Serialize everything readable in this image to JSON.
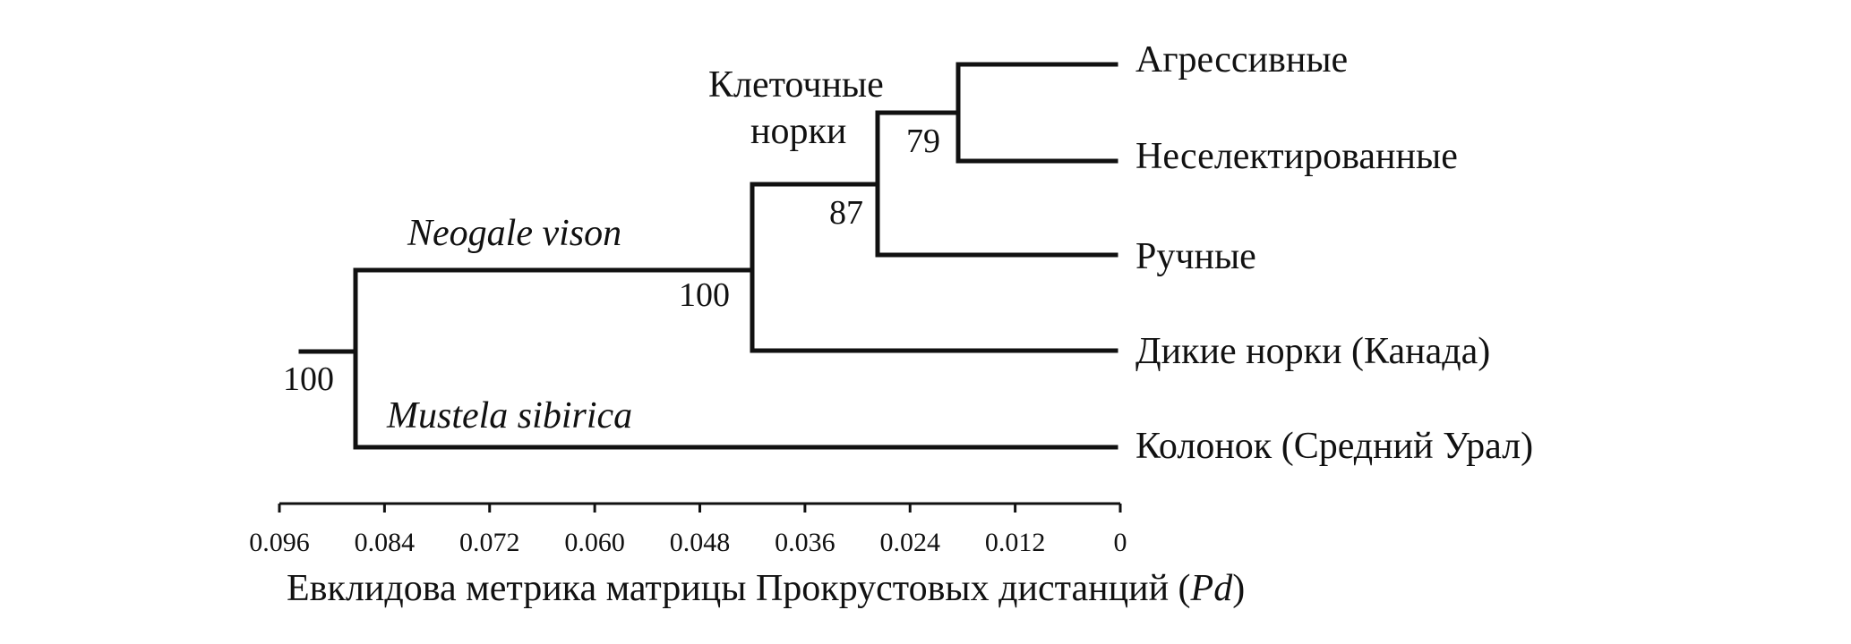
{
  "tree": {
    "leaves": [
      {
        "key": "aggressive",
        "label": "Агрессивные"
      },
      {
        "key": "nonselected",
        "label": "Неселектированные"
      },
      {
        "key": "tame",
        "label": "Ручные"
      },
      {
        "key": "wild",
        "label": "Дикие норки (Канада)"
      },
      {
        "key": "kolonok",
        "label": "Колонок (Средний Урал)"
      }
    ],
    "bootstrap": {
      "root": "100",
      "neogale": "100",
      "cage": "87",
      "agg_nonsel": "79"
    },
    "clade_labels": {
      "neogale": "Neogale vison",
      "mustela": "Mustela sibirica",
      "cage_line1": "Клеточные",
      "cage_line2": "норки"
    }
  },
  "axis": {
    "ticks": [
      "0.096",
      "0.084",
      "0.072",
      "0.060",
      "0.048",
      "0.036",
      "0.024",
      "0.012",
      "0"
    ],
    "title_main": "Евклидова метрика матрицы Прокрустовых дистанций (",
    "title_italic": "Pd",
    "title_close": ")"
  }
}
